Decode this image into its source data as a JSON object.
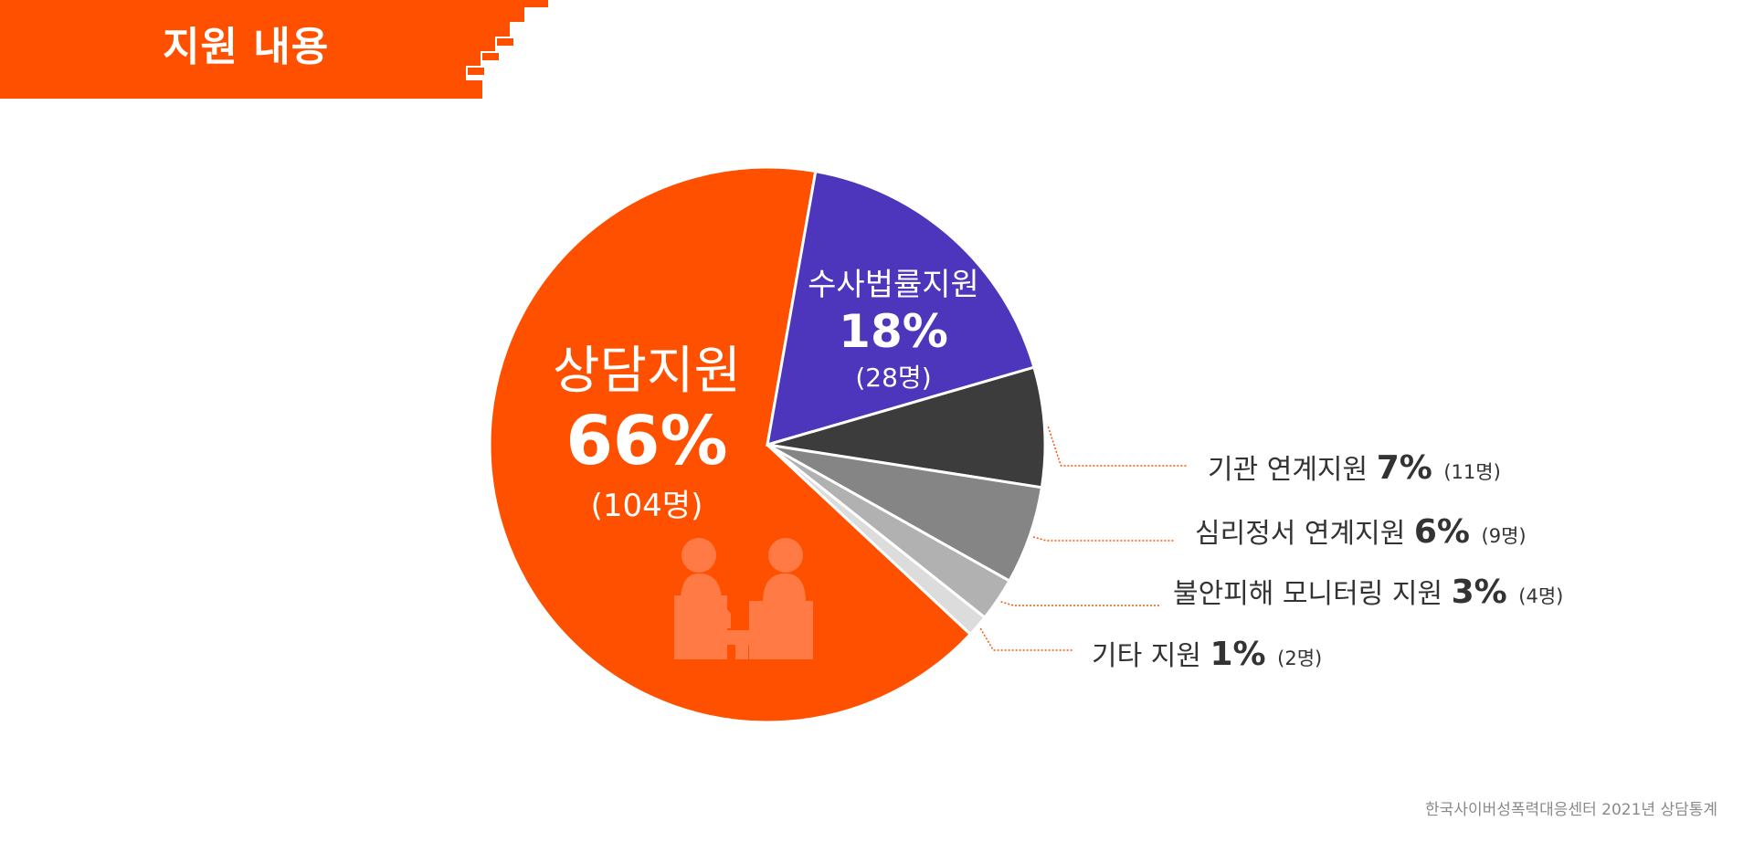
{
  "header": {
    "title": "지원 내용",
    "color": "#ff5000"
  },
  "chart_data": {
    "type": "pie",
    "unit_label": "명",
    "slices": [
      {
        "label": "상담지원",
        "percent_text": "66%",
        "count_text": "(104명)",
        "count": 104,
        "color": "#ff5000"
      },
      {
        "label": "수사법률지원",
        "percent_text": "18%",
        "count_text": "(28명)",
        "count": 28,
        "color": "#4d35bc"
      },
      {
        "label": "기관 연계지원",
        "percent_text": "7%",
        "count_text": "(11명)",
        "count": 11,
        "color": "#3c3c3c"
      },
      {
        "label": "심리정서 연계지원",
        "percent_text": "6%",
        "count_text": "(9명)",
        "count": 9,
        "color": "#858585"
      },
      {
        "label": "불안피해 모니터링 지원",
        "percent_text": "3%",
        "count_text": "(4명)",
        "count": 4,
        "color": "#b1b1b1"
      },
      {
        "label": "기타 지원",
        "percent_text": "1%",
        "count_text": "(2명)",
        "count": 2,
        "color": "#dcdcdc"
      }
    ],
    "leader_color": "#ff5000"
  },
  "icons": {
    "counseling": "counseling-icon"
  },
  "footer": {
    "note": "한국사이버성폭력대응센터 2021년 상담통계"
  }
}
